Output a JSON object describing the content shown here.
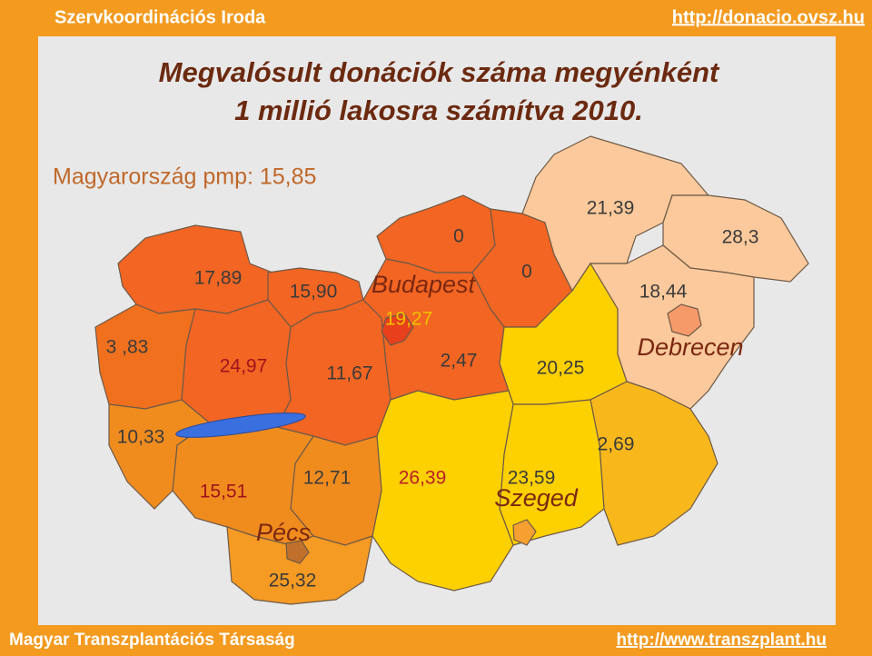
{
  "header": {
    "left": "Szervkoordinációs Iroda",
    "right": "http://donacio.ovsz.hu"
  },
  "title": {
    "line1": "Megvalósult donációk száma megyénként",
    "line2": "1 millió lakosra számítva 2010."
  },
  "national": "Magyarország pmp: 15,85",
  "counties": [
    {
      "value": "17,89"
    },
    {
      "value": "15,90"
    },
    {
      "value": "3 ,83"
    },
    {
      "value": "24,97"
    },
    {
      "value": "11,67"
    },
    {
      "value": "0"
    },
    {
      "value": "0"
    },
    {
      "value": "19,27"
    },
    {
      "value": "2,47"
    },
    {
      "value": "21,39"
    },
    {
      "value": "28,3"
    },
    {
      "value": "18,44"
    },
    {
      "value": "20,25"
    },
    {
      "value": "10,33"
    },
    {
      "value": "2,69"
    },
    {
      "value": "15,51"
    },
    {
      "value": "12,71"
    },
    {
      "value": "26,39"
    },
    {
      "value": "23,59"
    },
    {
      "value": "25,32"
    }
  ],
  "cities": [
    "Budapest",
    "Debrecen",
    "Szeged",
    "Pécs"
  ],
  "footer": {
    "left": "Magyar Transzplantációs Társaság",
    "right": "http://www.transzplant.hu"
  }
}
